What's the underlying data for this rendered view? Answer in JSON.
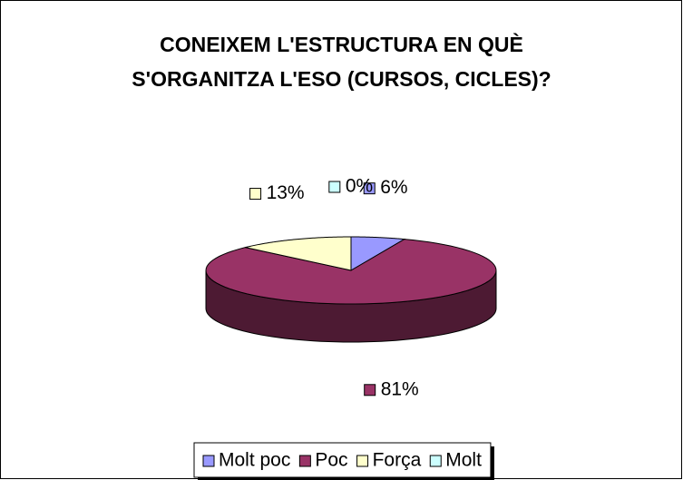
{
  "chart_data": {
    "type": "pie3d",
    "title": "CONEIXEM L'ESTRUCTURA EN QUÈ S'ORGANITZA L'ESO (CURSOS, CICLES)?",
    "categories": [
      "Molt poc",
      "Poc",
      "Força",
      "Molt"
    ],
    "values": [
      6,
      81,
      13,
      0
    ],
    "value_labels": [
      "6%",
      "81%",
      "13%",
      "0%"
    ],
    "colors": [
      "#9999ff",
      "#993366",
      "#ffffcc",
      "#ccffff"
    ],
    "legend": "bottom"
  }
}
